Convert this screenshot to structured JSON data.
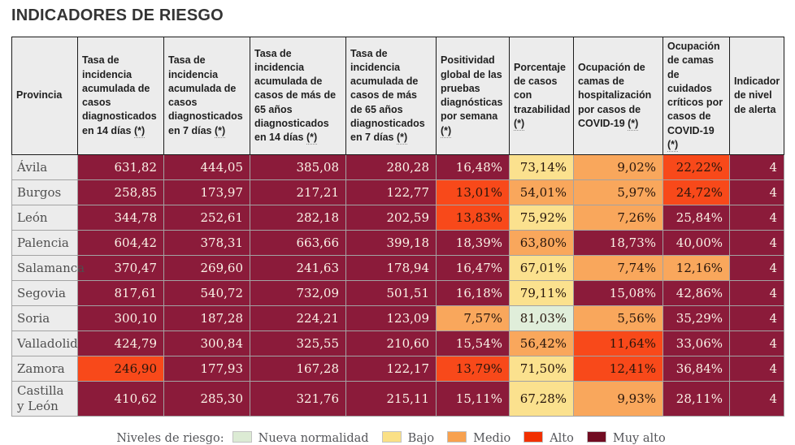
{
  "title": "INDICADORES DE RIESGO",
  "asterisk_marker": "(*)",
  "colors": {
    "muy-alto": "#8b1b3a",
    "alto": "#f8491a",
    "medio": "#f9a75c",
    "bajo": "#fbe18e",
    "nueva-normalidad": "#e0eeda"
  },
  "table": {
    "columns": [
      {
        "label": "Provincia",
        "asterisk": false
      },
      {
        "label": "Tasa de incidencia acumulada de casos diagnosticados en 14 días",
        "asterisk": true
      },
      {
        "label": "Tasa de incidencia acumulada de casos diagnosticados en 7 días",
        "asterisk": true
      },
      {
        "label": "Tasa de incidencia acumulada de casos de más de 65 años diagnosticados en 14 días",
        "asterisk": true
      },
      {
        "label": "Tasa de incidencia acumulada de casos de más de 65 años diagnosticados en 7 días",
        "asterisk": true
      },
      {
        "label": "Positividad global de las pruebas diagnósticas por semana",
        "asterisk": true
      },
      {
        "label": "Porcentaje de casos con trazabilidad",
        "asterisk": true
      },
      {
        "label": "Ocupación de camas de hospitalización por casos de COVID-19",
        "asterisk": true
      },
      {
        "label": "Ocupación de camas de cuidados críticos por casos de COVID-19",
        "asterisk": true
      },
      {
        "label": "Indicador de nivel de alerta",
        "asterisk": false
      }
    ],
    "rows": [
      {
        "name": "Ávila",
        "cells": [
          {
            "v": "631,82",
            "l": "muy-alto"
          },
          {
            "v": "444,05",
            "l": "muy-alto"
          },
          {
            "v": "385,08",
            "l": "muy-alto"
          },
          {
            "v": "280,28",
            "l": "muy-alto"
          },
          {
            "v": "16,48%",
            "l": "muy-alto"
          },
          {
            "v": "73,14%",
            "l": "bajo"
          },
          {
            "v": "9,02%",
            "l": "medio"
          },
          {
            "v": "22,22%",
            "l": "alto"
          },
          {
            "v": "4",
            "l": "muy-alto"
          }
        ]
      },
      {
        "name": "Burgos",
        "cells": [
          {
            "v": "258,85",
            "l": "muy-alto"
          },
          {
            "v": "173,97",
            "l": "muy-alto"
          },
          {
            "v": "217,21",
            "l": "muy-alto"
          },
          {
            "v": "122,77",
            "l": "muy-alto"
          },
          {
            "v": "13,01%",
            "l": "alto"
          },
          {
            "v": "54,01%",
            "l": "medio"
          },
          {
            "v": "5,97%",
            "l": "medio"
          },
          {
            "v": "24,72%",
            "l": "alto"
          },
          {
            "v": "4",
            "l": "muy-alto"
          }
        ]
      },
      {
        "name": "León",
        "cells": [
          {
            "v": "344,78",
            "l": "muy-alto"
          },
          {
            "v": "252,61",
            "l": "muy-alto"
          },
          {
            "v": "282,18",
            "l": "muy-alto"
          },
          {
            "v": "202,59",
            "l": "muy-alto"
          },
          {
            "v": "13,83%",
            "l": "alto"
          },
          {
            "v": "75,92%",
            "l": "bajo"
          },
          {
            "v": "7,26%",
            "l": "medio"
          },
          {
            "v": "25,84%",
            "l": "muy-alto"
          },
          {
            "v": "4",
            "l": "muy-alto"
          }
        ]
      },
      {
        "name": "Palencia",
        "cells": [
          {
            "v": "604,42",
            "l": "muy-alto"
          },
          {
            "v": "378,31",
            "l": "muy-alto"
          },
          {
            "v": "663,66",
            "l": "muy-alto"
          },
          {
            "v": "399,18",
            "l": "muy-alto"
          },
          {
            "v": "18,39%",
            "l": "muy-alto"
          },
          {
            "v": "63,80%",
            "l": "medio"
          },
          {
            "v": "18,73%",
            "l": "muy-alto"
          },
          {
            "v": "40,00%",
            "l": "muy-alto"
          },
          {
            "v": "4",
            "l": "muy-alto"
          }
        ]
      },
      {
        "name": "Salamanca",
        "cells": [
          {
            "v": "370,47",
            "l": "muy-alto"
          },
          {
            "v": "269,60",
            "l": "muy-alto"
          },
          {
            "v": "241,63",
            "l": "muy-alto"
          },
          {
            "v": "178,94",
            "l": "muy-alto"
          },
          {
            "v": "16,47%",
            "l": "muy-alto"
          },
          {
            "v": "67,01%",
            "l": "bajo"
          },
          {
            "v": "7,74%",
            "l": "medio"
          },
          {
            "v": "12,16%",
            "l": "medio"
          },
          {
            "v": "4",
            "l": "muy-alto"
          }
        ]
      },
      {
        "name": "Segovia",
        "cells": [
          {
            "v": "817,61",
            "l": "muy-alto"
          },
          {
            "v": "540,72",
            "l": "muy-alto"
          },
          {
            "v": "732,09",
            "l": "muy-alto"
          },
          {
            "v": "501,51",
            "l": "muy-alto"
          },
          {
            "v": "16,18%",
            "l": "muy-alto"
          },
          {
            "v": "79,11%",
            "l": "bajo"
          },
          {
            "v": "15,08%",
            "l": "muy-alto"
          },
          {
            "v": "42,86%",
            "l": "muy-alto"
          },
          {
            "v": "4",
            "l": "muy-alto"
          }
        ]
      },
      {
        "name": "Soria",
        "cells": [
          {
            "v": "300,10",
            "l": "muy-alto"
          },
          {
            "v": "187,28",
            "l": "muy-alto"
          },
          {
            "v": "224,21",
            "l": "muy-alto"
          },
          {
            "v": "123,09",
            "l": "muy-alto"
          },
          {
            "v": "7,57%",
            "l": "medio"
          },
          {
            "v": "81,03%",
            "l": "nueva-normalidad"
          },
          {
            "v": "5,56%",
            "l": "medio"
          },
          {
            "v": "35,29%",
            "l": "muy-alto"
          },
          {
            "v": "4",
            "l": "muy-alto"
          }
        ]
      },
      {
        "name": "Valladolid",
        "cells": [
          {
            "v": "424,79",
            "l": "muy-alto"
          },
          {
            "v": "300,84",
            "l": "muy-alto"
          },
          {
            "v": "325,55",
            "l": "muy-alto"
          },
          {
            "v": "210,60",
            "l": "muy-alto"
          },
          {
            "v": "15,54%",
            "l": "muy-alto"
          },
          {
            "v": "56,42%",
            "l": "medio"
          },
          {
            "v": "11,64%",
            "l": "alto"
          },
          {
            "v": "33,06%",
            "l": "muy-alto"
          },
          {
            "v": "4",
            "l": "muy-alto"
          }
        ]
      },
      {
        "name": "Zamora",
        "cells": [
          {
            "v": "246,90",
            "l": "alto"
          },
          {
            "v": "177,93",
            "l": "muy-alto"
          },
          {
            "v": "167,28",
            "l": "muy-alto"
          },
          {
            "v": "122,17",
            "l": "muy-alto"
          },
          {
            "v": "13,79%",
            "l": "alto"
          },
          {
            "v": "71,50%",
            "l": "bajo"
          },
          {
            "v": "12,41%",
            "l": "alto"
          },
          {
            "v": "36,84%",
            "l": "muy-alto"
          },
          {
            "v": "4",
            "l": "muy-alto"
          }
        ]
      },
      {
        "name": "Castilla y León",
        "cells": [
          {
            "v": "410,62",
            "l": "muy-alto"
          },
          {
            "v": "285,30",
            "l": "muy-alto"
          },
          {
            "v": "321,76",
            "l": "muy-alto"
          },
          {
            "v": "215,11",
            "l": "muy-alto"
          },
          {
            "v": "15,11%",
            "l": "muy-alto"
          },
          {
            "v": "67,28%",
            "l": "bajo"
          },
          {
            "v": "9,93%",
            "l": "medio"
          },
          {
            "v": "28,11%",
            "l": "muy-alto"
          },
          {
            "v": "4",
            "l": "muy-alto"
          }
        ]
      }
    ]
  },
  "legend": {
    "label": "Niveles de riesgo:",
    "items": [
      {
        "label": "Nueva normalidad",
        "color": "#dcebd4"
      },
      {
        "label": "Bajo",
        "color": "#fae086"
      },
      {
        "label": "Medio",
        "color": "#f7a14f"
      },
      {
        "label": "Alto",
        "color": "#f13000"
      },
      {
        "label": "Muy alto",
        "color": "#710c22"
      }
    ]
  }
}
